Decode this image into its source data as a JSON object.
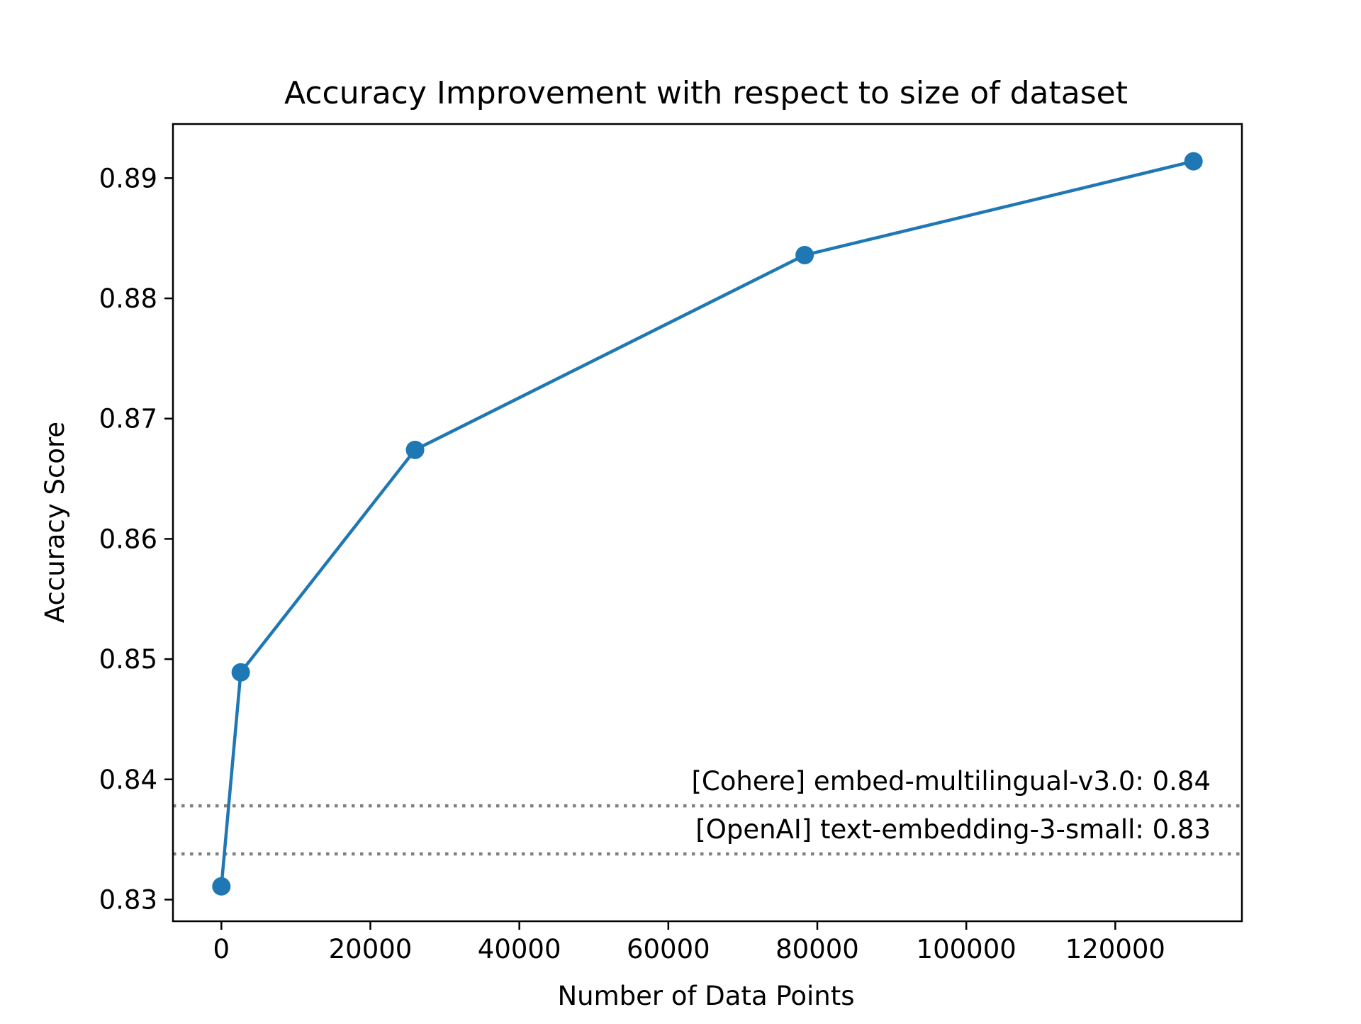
{
  "chart_data": {
    "type": "line",
    "title": "Accuracy Improvement with respect to size of dataset",
    "xlabel": "Number of Data Points",
    "ylabel": "Accuracy Score",
    "xlim": [
      -6500,
      137000
    ],
    "ylim": [
      0.8282,
      0.8945
    ],
    "xticks": [
      0,
      20000,
      40000,
      60000,
      80000,
      100000,
      120000
    ],
    "xtick_labels": [
      "0",
      "20000",
      "40000",
      "60000",
      "80000",
      "100000",
      "120000"
    ],
    "yticks": [
      0.83,
      0.84,
      0.85,
      0.86,
      0.87,
      0.88,
      0.89
    ],
    "ytick_labels": [
      "0.83",
      "0.84",
      "0.85",
      "0.86",
      "0.87",
      "0.88",
      "0.89"
    ],
    "grid": false,
    "series": [
      {
        "color": "#1f77b4",
        "marker": "circle",
        "x": [
          0,
          2600,
          26000,
          78300,
          130500
        ],
        "y": [
          0.8311,
          0.8489,
          0.8674,
          0.8836,
          0.8914
        ]
      }
    ],
    "reference_lines": [
      {
        "y": 0.8338,
        "label": "[OpenAI] text-embedding-3-small: 0.83",
        "style": "dotted",
        "color": "#808080"
      },
      {
        "y": 0.8378,
        "label": "[Cohere] embed-multilingual-v3.0: 0.84",
        "style": "dotted",
        "color": "#808080"
      }
    ]
  }
}
